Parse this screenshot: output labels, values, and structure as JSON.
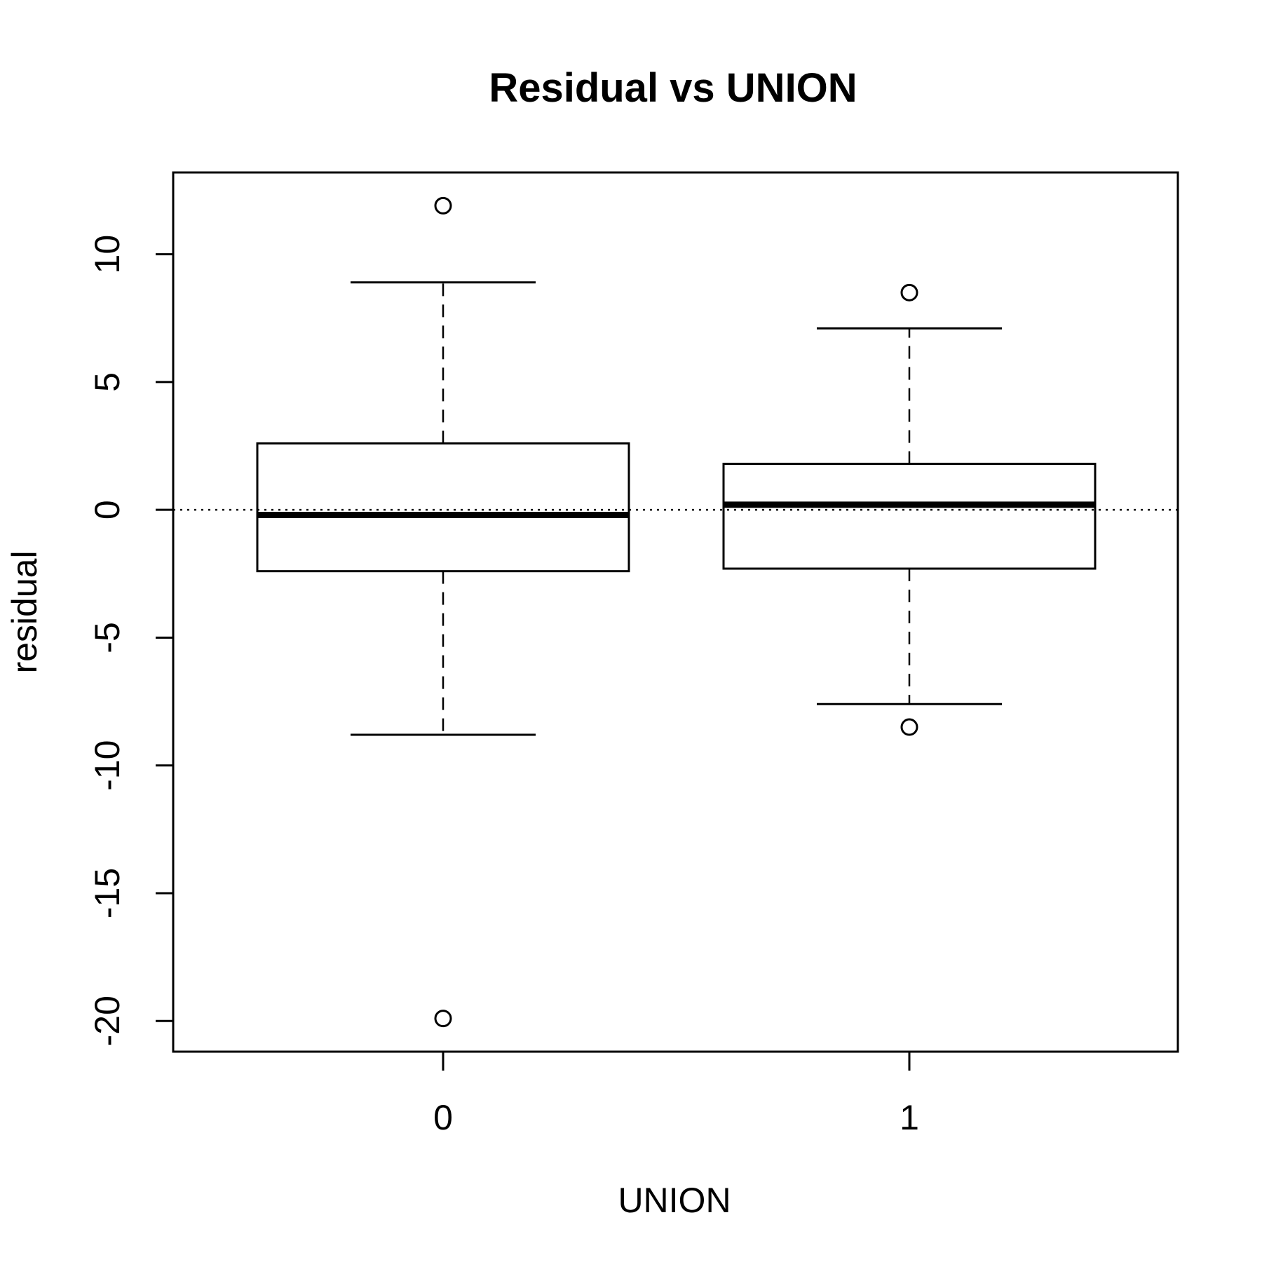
{
  "chart_data": {
    "type": "boxplot",
    "title": "Residual vs UNION",
    "xlabel": "UNION",
    "ylabel": "residual",
    "categories": [
      "0",
      "1"
    ],
    "ylim": [
      -21.2,
      13.2
    ],
    "yticks": [
      -20,
      -15,
      -10,
      -5,
      0,
      5,
      10
    ],
    "ytick_labels": [
      "-20",
      "-15",
      "-10",
      "-5",
      "0",
      "5",
      "10"
    ],
    "reference_line": {
      "y": 0,
      "style": "dotted"
    },
    "grid": false,
    "legend": "none",
    "boxes": [
      {
        "category": "0",
        "whisker_low": -8.8,
        "q1": -2.4,
        "median": -0.2,
        "q3": 2.6,
        "whisker_high": 8.9,
        "outliers": [
          11.9,
          -19.9
        ]
      },
      {
        "category": "1",
        "whisker_low": -7.6,
        "q1": -2.3,
        "median": 0.2,
        "q3": 1.8,
        "whisker_high": 7.1,
        "outliers": [
          8.5,
          -8.5
        ]
      }
    ]
  }
}
